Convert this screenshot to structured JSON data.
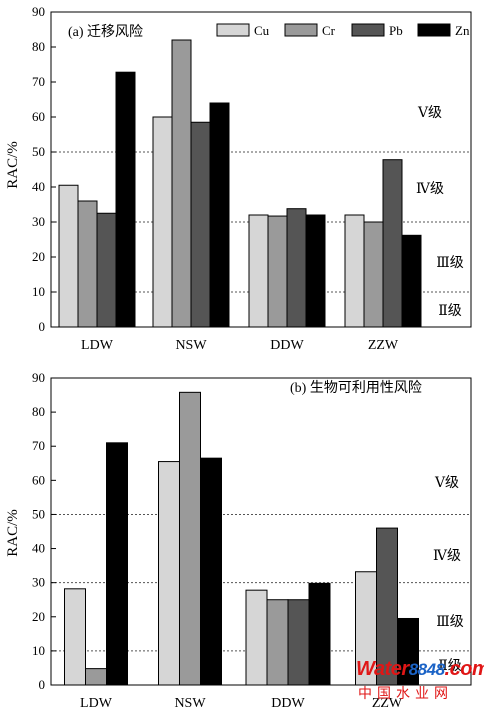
{
  "legend": [
    {
      "name": "Cu",
      "color": "#d6d6d6"
    },
    {
      "name": "Cr",
      "color": "#9a9a9a"
    },
    {
      "name": "Pb",
      "color": "#555555"
    },
    {
      "name": "Zn",
      "color": "#000000"
    }
  ],
  "y_axis_label": "RAC/%",
  "levels": [
    "Ⅴ级",
    "Ⅳ级",
    "Ⅲ级",
    "Ⅱ级"
  ],
  "level_boundaries": [
    10,
    30,
    50
  ],
  "watermark": {
    "brand_red": "Water",
    "brand_num": "8848",
    "brand_dotcom": ".com",
    "subtitle": "中国水业网"
  },
  "chart_data": [
    {
      "type": "bar",
      "title": "(a) 迁移风险",
      "xlabel": "",
      "ylabel": "RAC/%",
      "ylim": [
        0,
        90
      ],
      "yticks": [
        0,
        10,
        20,
        30,
        40,
        50,
        60,
        70,
        80,
        90
      ],
      "grid": "dotted horizontal at 10, 30, 50",
      "legend_position": "top-right",
      "categories": [
        "LDW",
        "NSW",
        "DDW",
        "ZZW"
      ],
      "series": [
        {
          "name": "Cu",
          "values": [
            40.5,
            60,
            32,
            32
          ]
        },
        {
          "name": "Cr",
          "values": [
            36,
            82,
            31.7,
            30
          ]
        },
        {
          "name": "Pb",
          "values": [
            32.5,
            58.5,
            33.8,
            47.8
          ]
        },
        {
          "name": "Zn",
          "values": [
            72.8,
            64,
            32,
            26.2
          ]
        }
      ]
    },
    {
      "type": "bar",
      "title": "(b) 生物可利用性风险",
      "xlabel": "",
      "ylabel": "RAC/%",
      "ylim": [
        0,
        90
      ],
      "yticks": [
        0,
        10,
        20,
        30,
        40,
        50,
        60,
        70,
        80,
        90
      ],
      "grid": "dotted horizontal at 10, 30, 50",
      "categories": [
        "LDW",
        "NSW",
        "DDW",
        "ZZW"
      ],
      "series": [
        {
          "name": "Cu",
          "values": [
            28.2,
            65.5,
            27.8,
            33.2
          ]
        },
        {
          "name": "Cr",
          "values": [
            4.8,
            85.8,
            25,
            null
          ]
        },
        {
          "name": "Pb",
          "values": [
            null,
            null,
            25,
            46
          ]
        },
        {
          "name": "Zn",
          "values": [
            71,
            66.5,
            29.8,
            19.5
          ]
        }
      ]
    }
  ]
}
